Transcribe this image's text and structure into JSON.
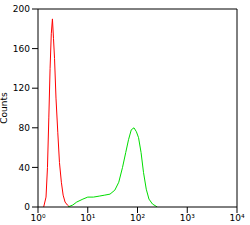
{
  "chart_data": {
    "type": "line",
    "y_label": "Counts",
    "log": "x",
    "xlim": [
      1,
      10000
    ],
    "xticks": [
      {
        "value": 1,
        "label": "10⁰"
      },
      {
        "value": 10,
        "label": "10¹"
      },
      {
        "value": 100,
        "label": "10²"
      },
      {
        "value": 1000,
        "label": "10³"
      },
      {
        "value": 10000,
        "label": "10⁴"
      }
    ],
    "ylim": [
      0,
      200
    ],
    "yticks": [
      0,
      40,
      80,
      120,
      160,
      200
    ],
    "series": [
      {
        "color": "#ff0000",
        "x": [
          1.3,
          1.45,
          1.55,
          1.65,
          1.75,
          1.85,
          1.95,
          2.05,
          2.15,
          2.3,
          2.5,
          2.7,
          2.95,
          3.2,
          3.5,
          3.9,
          4.3
        ],
        "values": [
          0,
          10,
          40,
          90,
          140,
          175,
          190,
          170,
          150,
          110,
          75,
          45,
          25,
          12,
          5,
          2,
          0
        ]
      },
      {
        "color": "#00dd00",
        "x": [
          4,
          5,
          6,
          8,
          10,
          13,
          17,
          22,
          28,
          35,
          42,
          50,
          58,
          66,
          75,
          85,
          95,
          105,
          118,
          132,
          150,
          170,
          200,
          250
        ],
        "values": [
          0,
          2,
          5,
          8,
          10,
          10,
          11,
          12,
          13,
          17,
          25,
          40,
          55,
          68,
          78,
          80,
          76,
          70,
          55,
          35,
          18,
          8,
          3,
          0
        ]
      }
    ]
  }
}
